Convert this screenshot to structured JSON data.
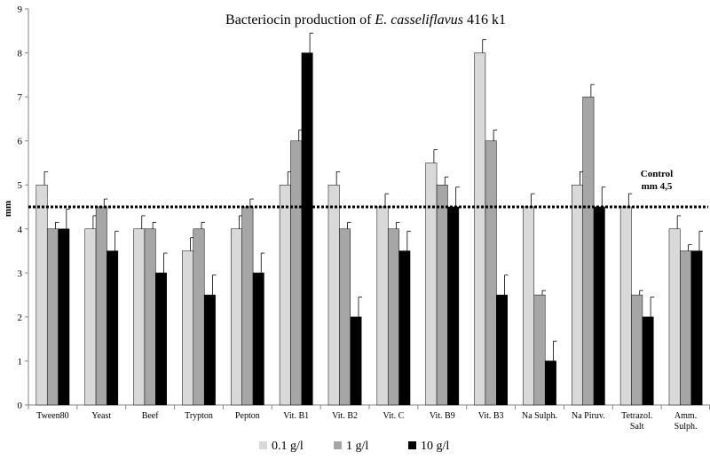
{
  "chart_data": {
    "type": "bar",
    "title_prefix": "Bacteriocin production of ",
    "title_italic": "E. casseliflavus",
    "title_suffix": " 416 k1",
    "ylabel": "mm",
    "ylim": [
      0,
      9
    ],
    "yticks": [
      "0",
      "1",
      "2",
      "3",
      "4",
      "5",
      "6",
      "7",
      "8",
      "9"
    ],
    "grid": false,
    "legend_position": "bottom",
    "categories": [
      [
        "Tween80"
      ],
      [
        "Yeast"
      ],
      [
        "Beef"
      ],
      [
        "Trypton"
      ],
      [
        "Pepton"
      ],
      [
        "Vit. B1"
      ],
      [
        "Vit. B2"
      ],
      [
        "Vit. C"
      ],
      [
        "Vit. B9"
      ],
      [
        "Vit. B3"
      ],
      [
        "Na Sulph."
      ],
      [
        "Na Piruv."
      ],
      [
        "Tetrazol.",
        "Salt"
      ],
      [
        "Amm.",
        "Sulph."
      ]
    ],
    "series": [
      {
        "name": "0.1 g/l",
        "color": "#d9d9d9",
        "values": [
          5,
          4,
          4,
          3.5,
          4,
          5,
          5,
          4.5,
          5.5,
          8,
          4.5,
          5,
          4.5,
          4
        ],
        "errors": [
          0.3,
          0.3,
          0.3,
          0.3,
          0.3,
          0.3,
          0.3,
          0.3,
          0.3,
          0.3,
          0.3,
          0.3,
          0.3,
          0.3
        ]
      },
      {
        "name": "1 g/l",
        "color": "#a6a6a6",
        "values": [
          4,
          4.5,
          4,
          4,
          4.5,
          6,
          4,
          4,
          5,
          6,
          2.5,
          7,
          2.5,
          3.5
        ],
        "errors": [
          0.15,
          0.18,
          0.15,
          0.15,
          0.18,
          0.25,
          0.15,
          0.15,
          0.18,
          0.25,
          0.1,
          0.28,
          0.1,
          0.14
        ]
      },
      {
        "name": "10 g/l",
        "color": "#000000",
        "values": [
          4,
          3.5,
          3,
          2.5,
          3,
          8,
          2,
          3.5,
          4.5,
          2.5,
          1,
          4.5,
          2,
          3.5
        ],
        "errors": [
          0.45,
          0.45,
          0.45,
          0.45,
          0.45,
          0.45,
          0.45,
          0.45,
          0.45,
          0.45,
          0.45,
          0.45,
          0.45,
          0.45
        ]
      }
    ],
    "reference_line": {
      "value": 4.5,
      "label_line1": "Control",
      "label_line2": "mm 4,5"
    }
  }
}
